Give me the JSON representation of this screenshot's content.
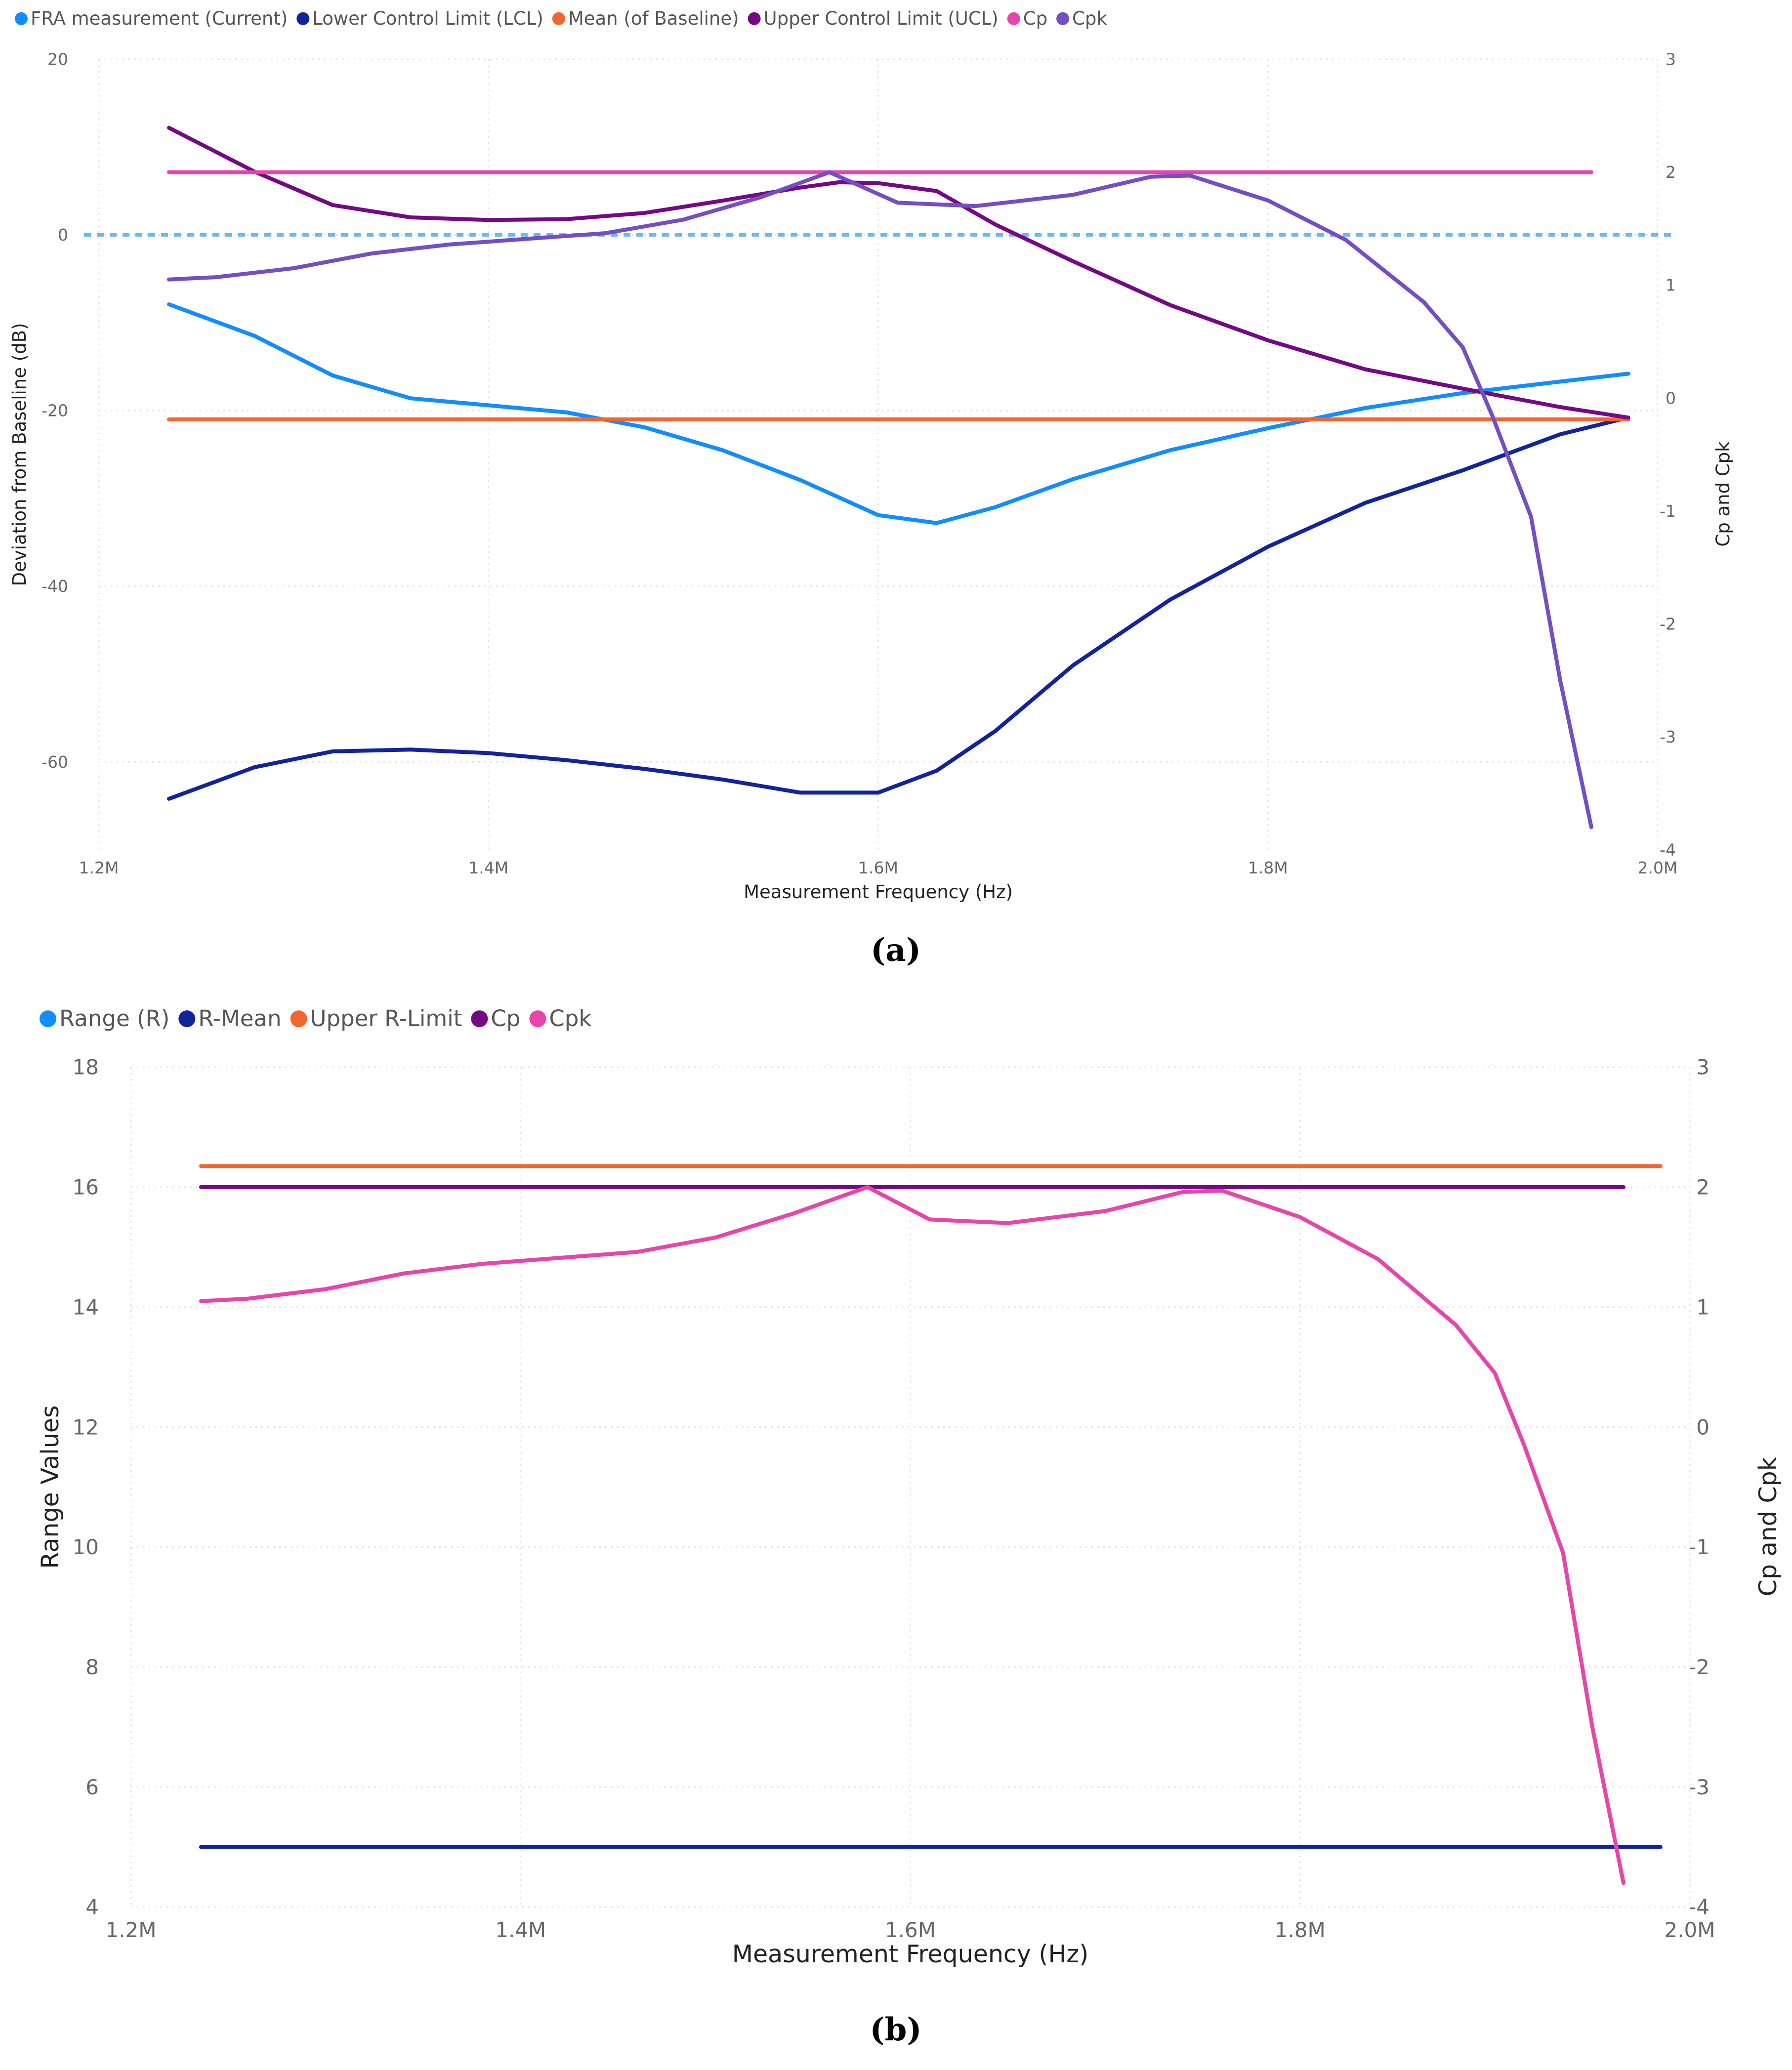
{
  "chart_data": [
    {
      "id": "a",
      "caption": "(a)",
      "type": "line",
      "xlabel": "Measurement Frequency (Hz)",
      "ylabel": "Deviation from Baseline (dB)",
      "y2label": "Cp and Cpk",
      "x_range": [
        1.2,
        2.0
      ],
      "x_ticks": [
        "1.2M",
        "1.4M",
        "1.6M",
        "1.8M",
        "2.0M"
      ],
      "x_tick_values": [
        1.2,
        1.4,
        1.6,
        1.8,
        2.0
      ],
      "ylim": [
        -70,
        20
      ],
      "y_ticks": [
        "20",
        "0",
        "-20",
        "-40",
        "-60"
      ],
      "y_tick_values": [
        20,
        0,
        -20,
        -40,
        -60
      ],
      "y2lim": [
        -4,
        3
      ],
      "y2_ticks": [
        "3",
        "2",
        "1",
        "0",
        "-1",
        "-2",
        "-3",
        "-4"
      ],
      "y2_tick_values": [
        3,
        2,
        1,
        0,
        -1,
        -2,
        -3,
        -4
      ],
      "legend_position": "top-left",
      "baseline_reference": {
        "y": 0,
        "style": "dashed",
        "color": "#6EB8F0"
      },
      "series": [
        {
          "name": "FRA measurement (Current)",
          "color": "#118DFF",
          "axis": "left",
          "x": [
            1.236,
            1.28,
            1.32,
            1.36,
            1.4,
            1.44,
            1.48,
            1.52,
            1.56,
            1.6,
            1.63,
            1.66,
            1.7,
            1.75,
            1.8,
            1.85,
            1.9,
            1.95,
            1.985
          ],
          "y": [
            -7.9,
            -11.5,
            -16.0,
            -18.6,
            -19.4,
            -20.2,
            -21.9,
            -24.5,
            -27.9,
            -31.9,
            -32.8,
            -31.0,
            -27.8,
            -24.5,
            -22.0,
            -19.7,
            -18.0,
            -16.7,
            -15.8
          ]
        },
        {
          "name": "Lower Control Limit (LCL)",
          "color": "#12239E",
          "axis": "left",
          "x": [
            1.236,
            1.28,
            1.32,
            1.36,
            1.4,
            1.44,
            1.48,
            1.52,
            1.56,
            1.6,
            1.63,
            1.66,
            1.7,
            1.75,
            1.8,
            1.85,
            1.9,
            1.95,
            1.985
          ],
          "y": [
            -64.2,
            -60.6,
            -58.8,
            -58.6,
            -59.0,
            -59.8,
            -60.8,
            -62.0,
            -63.5,
            -63.5,
            -61.0,
            -56.5,
            -49.0,
            -41.5,
            -35.5,
            -30.5,
            -26.8,
            -22.7,
            -20.8
          ]
        },
        {
          "name": "Mean (of Baseline)",
          "color": "#F2652F",
          "axis": "left",
          "x": [
            1.236,
            1.985
          ],
          "y": [
            -21.0,
            -21.0
          ]
        },
        {
          "name": "Upper Control Limit (UCL)",
          "color": "#750985",
          "axis": "left",
          "x": [
            1.236,
            1.28,
            1.32,
            1.36,
            1.4,
            1.44,
            1.48,
            1.52,
            1.56,
            1.58,
            1.6,
            1.63,
            1.66,
            1.7,
            1.75,
            1.8,
            1.85,
            1.9,
            1.95,
            1.985
          ],
          "y": [
            12.2,
            7.2,
            3.4,
            2.0,
            1.7,
            1.8,
            2.5,
            3.9,
            5.4,
            6.0,
            5.9,
            5.0,
            1.2,
            -3.0,
            -8.0,
            -12.0,
            -15.3,
            -17.5,
            -19.6,
            -20.8
          ]
        },
        {
          "name": "Cp",
          "color": "#E645AB",
          "axis": "right",
          "x": [
            1.236,
            1.966
          ],
          "y": [
            2.0,
            2.0
          ]
        },
        {
          "name": "Cpk",
          "color": "#744EC2",
          "axis": "right",
          "x": [
            1.236,
            1.26,
            1.3,
            1.34,
            1.38,
            1.42,
            1.46,
            1.5,
            1.54,
            1.575,
            1.61,
            1.65,
            1.7,
            1.74,
            1.76,
            1.8,
            1.84,
            1.88,
            1.9,
            1.915,
            1.935,
            1.95,
            1.966
          ],
          "y": [
            1.05,
            1.07,
            1.15,
            1.28,
            1.36,
            1.41,
            1.46,
            1.58,
            1.78,
            2.0,
            1.73,
            1.7,
            1.8,
            1.96,
            1.97,
            1.75,
            1.4,
            0.85,
            0.45,
            -0.15,
            -1.05,
            -2.5,
            -3.8
          ]
        }
      ]
    },
    {
      "id": "b",
      "caption": "(b)",
      "type": "line",
      "xlabel": "Measurement Frequency (Hz)",
      "ylabel": "Range Values",
      "y2label": "Cp and Cpk",
      "x_range": [
        1.2,
        2.0
      ],
      "x_ticks": [
        "1.2M",
        "1.4M",
        "1.6M",
        "1.8M",
        "2.0M"
      ],
      "x_tick_values": [
        1.2,
        1.4,
        1.6,
        1.8,
        2.0
      ],
      "ylim": [
        4,
        18
      ],
      "y_ticks": [
        "18",
        "16",
        "14",
        "12",
        "10",
        "8",
        "6",
        "4"
      ],
      "y_tick_values": [
        18,
        16,
        14,
        12,
        10,
        8,
        6,
        4
      ],
      "y2lim": [
        -4,
        3
      ],
      "y2_ticks": [
        "3",
        "2",
        "1",
        "0",
        "-1",
        "-2",
        "-3",
        "-4"
      ],
      "y2_tick_values": [
        3,
        2,
        1,
        0,
        -1,
        -2,
        -3,
        -4
      ],
      "legend_position": "top-left",
      "series": [
        {
          "name": "Range (R)",
          "color": "#118DFF",
          "axis": "left",
          "x": [],
          "y": []
        },
        {
          "name": "R-Mean",
          "color": "#12239E",
          "axis": "left",
          "x": [
            1.236,
            1.985
          ],
          "y": [
            5.0,
            5.0
          ]
        },
        {
          "name": "Upper R-Limit",
          "color": "#F2652F",
          "axis": "left",
          "x": [
            1.236,
            1.985
          ],
          "y": [
            16.35,
            16.35
          ]
        },
        {
          "name": "Cp",
          "color": "#750985",
          "axis": "right",
          "x": [
            1.236,
            1.966
          ],
          "y": [
            2.0,
            2.0
          ]
        },
        {
          "name": "Cpk",
          "color": "#E645AB",
          "axis": "right",
          "x": [
            1.236,
            1.26,
            1.3,
            1.34,
            1.38,
            1.42,
            1.46,
            1.5,
            1.54,
            1.578,
            1.61,
            1.65,
            1.7,
            1.74,
            1.76,
            1.8,
            1.84,
            1.88,
            1.9,
            1.915,
            1.935,
            1.95,
            1.966
          ],
          "y": [
            1.05,
            1.07,
            1.15,
            1.28,
            1.36,
            1.41,
            1.46,
            1.58,
            1.78,
            2.0,
            1.73,
            1.7,
            1.8,
            1.96,
            1.97,
            1.75,
            1.4,
            0.85,
            0.45,
            -0.15,
            -1.05,
            -2.5,
            -3.8
          ]
        }
      ]
    }
  ]
}
